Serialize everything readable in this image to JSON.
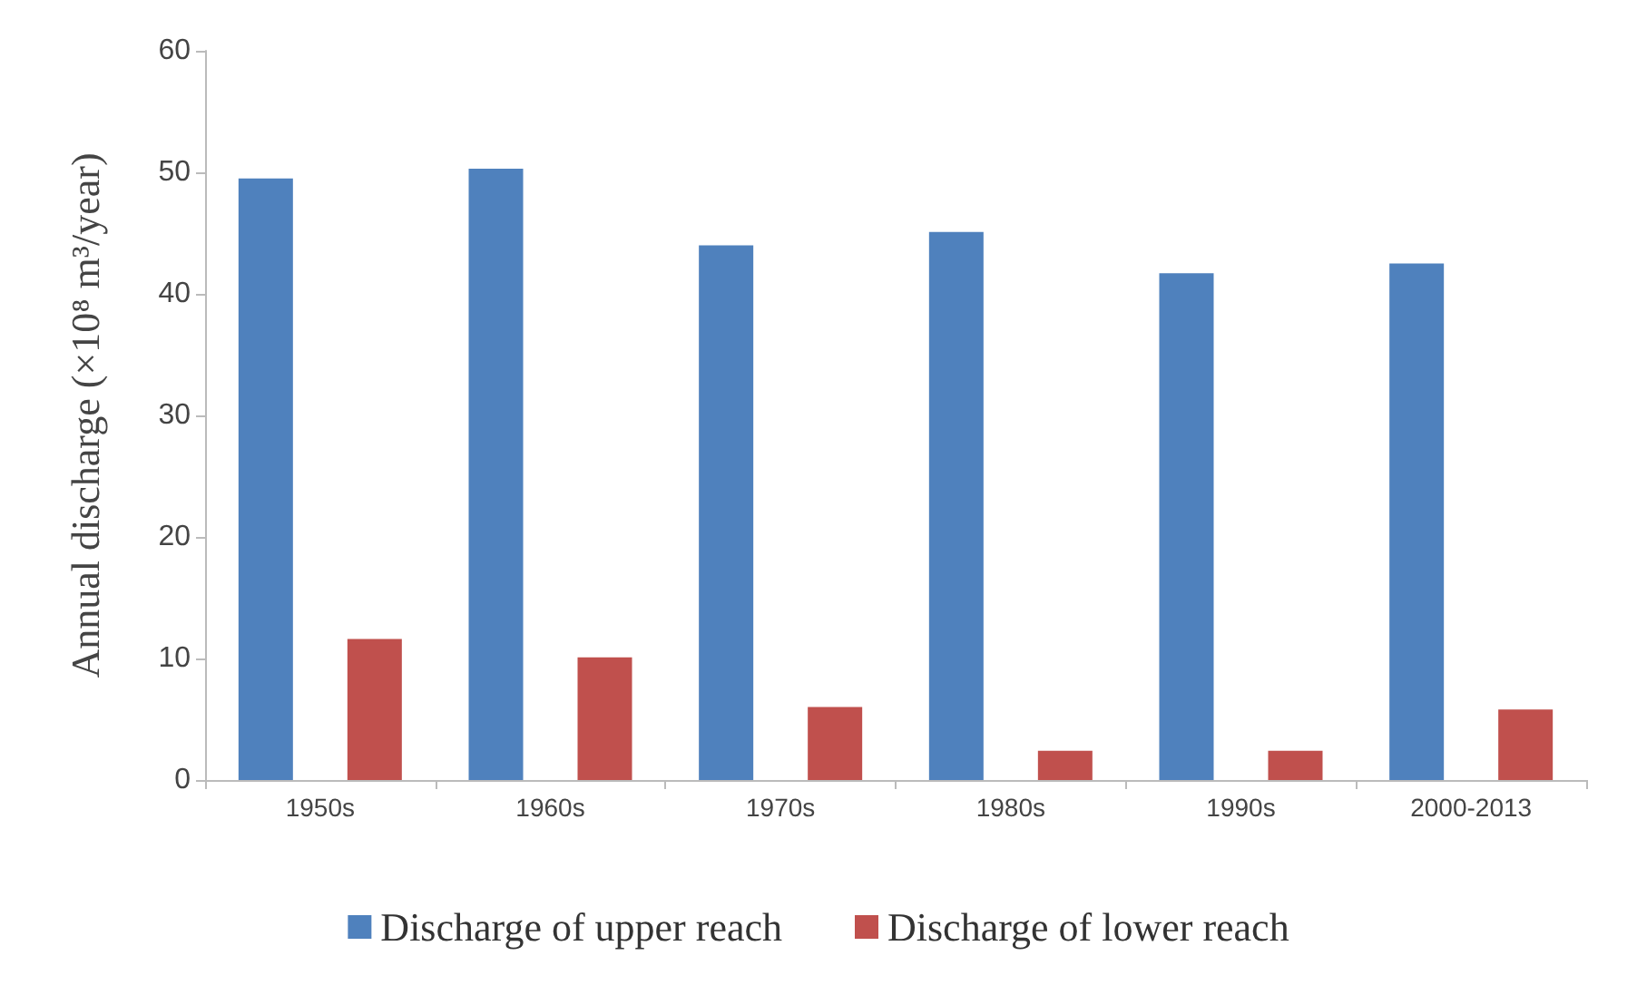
{
  "chart_data": {
    "type": "bar",
    "ylabel": "Annual discharge (×10⁸ m³/year)",
    "categories": [
      "1950s",
      "1960s",
      "1970s",
      "1980s",
      "1990s",
      "2000-2013"
    ],
    "series": [
      {
        "name": "Discharge of upper reach",
        "color": "#4f81bd",
        "values": [
          49.5,
          50.3,
          44.0,
          45.1,
          41.7,
          42.5
        ]
      },
      {
        "name": "Discharge of lower reach",
        "color": "#c0504d",
        "values": [
          11.6,
          10.1,
          6.0,
          2.4,
          2.4,
          5.8
        ]
      }
    ],
    "ylim": [
      0,
      60
    ],
    "yticks": [
      0,
      10,
      20,
      30,
      40,
      50,
      60
    ],
    "grid": false,
    "legend": "bottom"
  }
}
